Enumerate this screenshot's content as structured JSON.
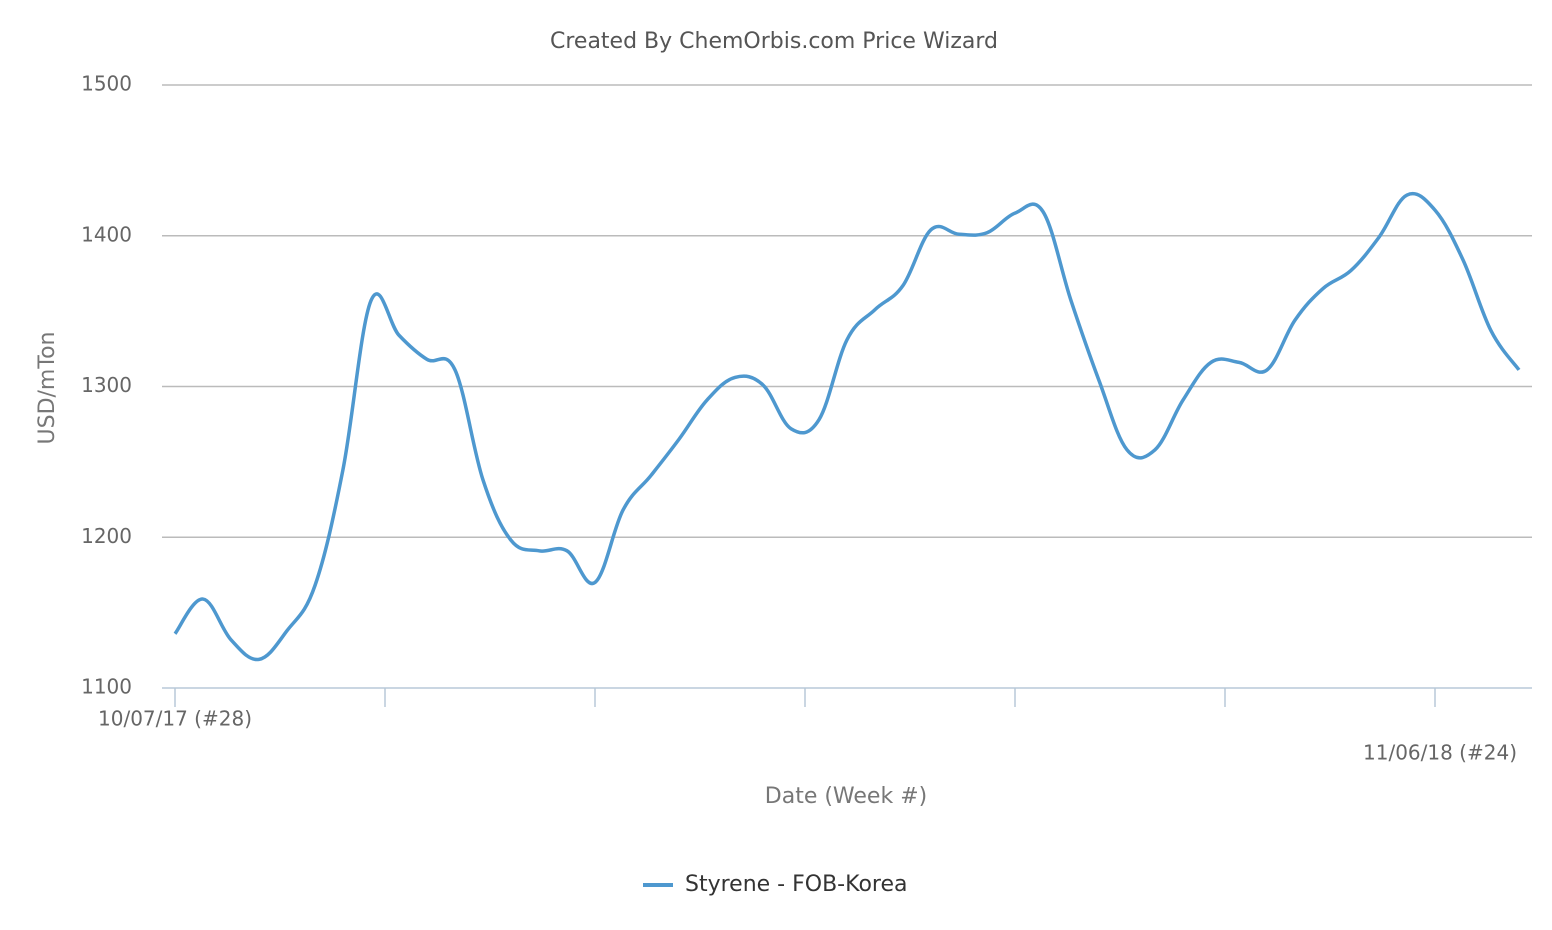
{
  "chart_data": {
    "type": "line",
    "title": "Created By ChemOrbis.com Price Wizard",
    "x_label": "Date (Week #)",
    "y_label": "USD/mTon",
    "categories": [
      "10/07/17 (#28)",
      null,
      null,
      null,
      null,
      null,
      null,
      null,
      null,
      null,
      null,
      null,
      null,
      null,
      null,
      null,
      null,
      null,
      null,
      null,
      null,
      null,
      null,
      null,
      null,
      null,
      null,
      null,
      null,
      null,
      null,
      null,
      null,
      null,
      null,
      null,
      null,
      null,
      null,
      null,
      null,
      null,
      null,
      null,
      null,
      null,
      null,
      null,
      "11/06/18 (#24)"
    ],
    "series": [
      {
        "name": "Styrene - FOB-Korea",
        "color": "#4e98cf",
        "values": [
          1136,
          1159,
          1132,
          1119,
          1138,
          1168,
          1245,
          1357,
          1334,
          1318,
          1311,
          1238,
          1198,
          1191,
          1191,
          1170,
          1218,
          1241,
          1265,
          1291,
          1306,
          1301,
          1272,
          1278,
          1331,
          1351,
          1367,
          1404,
          1401,
          1402,
          1415,
          1416,
          1357,
          1304,
          1258,
          1258,
          1291,
          1316,
          1316,
          1311,
          1344,
          1365,
          1377,
          1399,
          1427,
          1417,
          1384,
          1337,
          1311
        ]
      }
    ],
    "xticks": [
      0,
      7.5,
      15,
      22.5,
      30,
      37.5,
      45
    ],
    "ylim": [
      1100,
      1500
    ],
    "yticks": [
      1100,
      1200,
      1300,
      1400,
      1500
    ],
    "grid": true,
    "legend": "bottom"
  }
}
